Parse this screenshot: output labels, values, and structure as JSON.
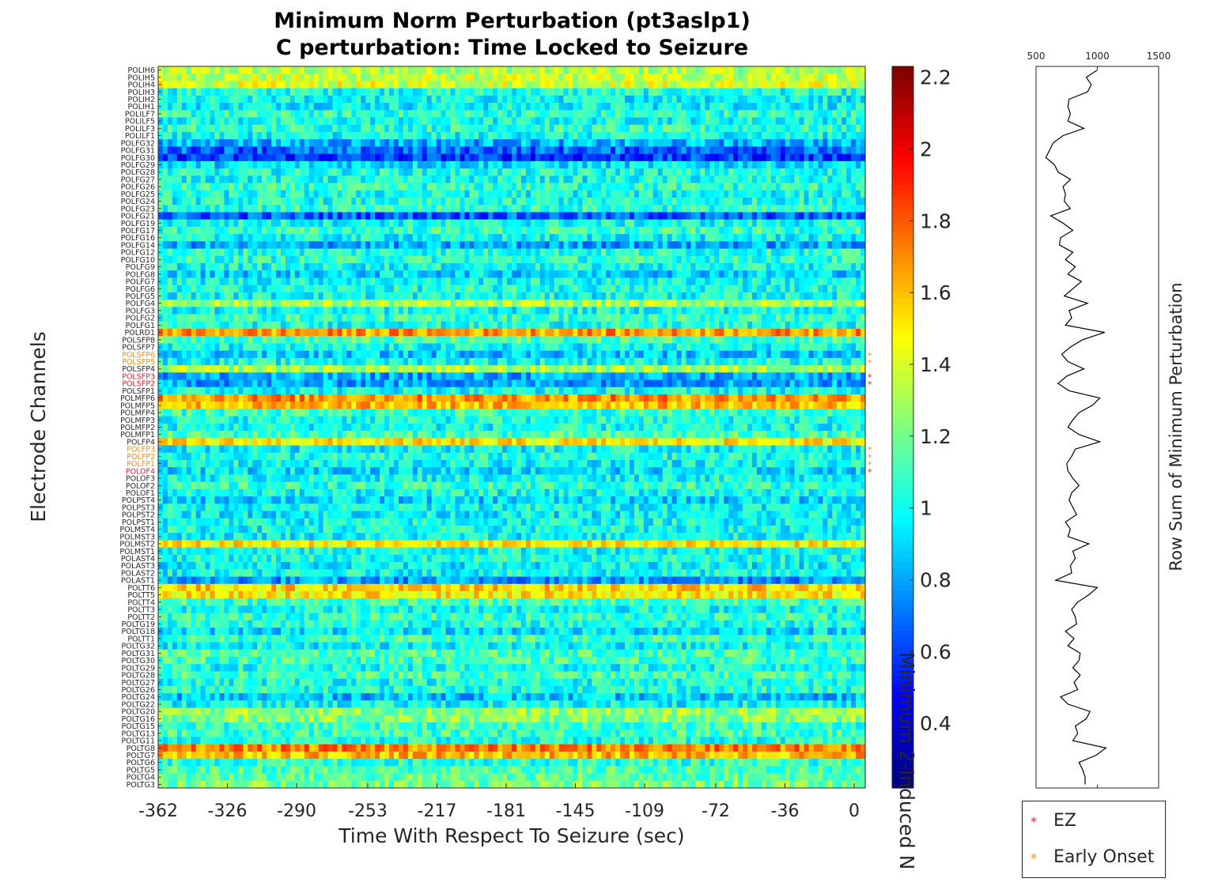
{
  "title_line1": "Minimum Norm Perturbation (pt3aslp1)",
  "title_line2": "C perturbation:  Time Locked to Seizure",
  "colors": {
    "ez": "#e8192c",
    "early_onset": "#ff8c1a",
    "axes": "#262626",
    "line": "#000000"
  },
  "legend": {
    "ez_label": "EZ",
    "early_onset_label": "Early Onset",
    "star_glyph": "*"
  },
  "chart_data": [
    {
      "type": "heatmap",
      "xlabel": "Time With Respect To Seizure (sec)",
      "ylabel": "Electrode Channels",
      "x_ticks": [
        "-362",
        "-326",
        "-290",
        "-253",
        "-217",
        "-181",
        "-145",
        "-109",
        "-72",
        "-36",
        "0"
      ],
      "xlim": [
        -362,
        0
      ],
      "colormap": "jet",
      "colorbar": {
        "label": "Minimum 2-Induced N",
        "clim": [
          0.22,
          2.23
        ],
        "ticks": [
          0.4,
          0.6,
          0.8,
          1,
          1.2,
          1.4,
          1.6,
          1.8,
          2,
          2.2
        ],
        "tick_labels": [
          "0.4",
          "0.6",
          "0.8",
          "1",
          "1.2",
          "1.4",
          "1.6",
          "1.8",
          "2",
          "2.2"
        ]
      },
      "channels": [
        "POLIH6",
        "POLIH5",
        "POLIH4",
        "POLIH3",
        "POLIH2",
        "POLIH1",
        "POLILF7",
        "POLILF5",
        "POLILF3",
        "POLILF1",
        "POLFG32",
        "POLFG31",
        "POLFG30",
        "POLFG29",
        "POLFG28",
        "POLFG27",
        "POLFG26",
        "POLFG25",
        "POLFG24",
        "POLFG23",
        "POLFG21",
        "POLFG19",
        "POLFG17",
        "POLFG16",
        "POLFG14",
        "POLFG12",
        "POLFG10",
        "POLFG9",
        "POLFG8",
        "POLFG7",
        "POLFG6",
        "POLFG5",
        "POLFG4",
        "POLFG3",
        "POLFG2",
        "POLFG1",
        "POLRD1",
        "POLSFP8",
        "POLSFP7",
        "POLSFP6",
        "POLSFP5",
        "POLSFP4",
        "POLSFP3",
        "POLSFP2",
        "POLSFP1",
        "POLMFP6",
        "POLMFP5",
        "POLMFP4",
        "POLMFP3",
        "POLMFP2",
        "POLMFP1",
        "POLFP4",
        "POLFP3",
        "POLFP2",
        "POLFP1",
        "POLOF4",
        "POLOF3",
        "POLOF2",
        "POLOF1",
        "POLPST4",
        "POLPST3",
        "POLPST2",
        "POLPST1",
        "POLMST4",
        "POLMST3",
        "POLMST2",
        "POLMST1",
        "POLAST4",
        "POLAST3",
        "POLAST2",
        "POLAST1",
        "POLTT6",
        "POLTT5",
        "POLTT4",
        "POLTT3",
        "POLTT2",
        "POLTG19",
        "POLTG18",
        "POLTT1",
        "POLTG32",
        "POLTG31",
        "POLTG30",
        "POLTG29",
        "POLTG28",
        "POLTG27",
        "POLTG26",
        "POLTG24",
        "POLTG22",
        "POLTG20",
        "POLTG16",
        "POLTG15",
        "POLTG13",
        "POLTG11",
        "POLTG8",
        "POLTG7",
        "POLTG6",
        "POLTG5",
        "POLTG4",
        "POLTG3"
      ],
      "channel_mean_values": [
        1.32,
        1.36,
        1.4,
        1.03,
        0.98,
        0.98,
        1.06,
        1.0,
        1.06,
        1.0,
        0.82,
        0.68,
        0.58,
        0.92,
        1.02,
        1.0,
        1.06,
        1.0,
        1.02,
        1.06,
        0.66,
        1.0,
        1.08,
        0.98,
        0.8,
        1.04,
        1.06,
        1.0,
        0.9,
        1.0,
        1.02,
        1.0,
        1.3,
        1.0,
        1.08,
        1.02,
        1.68,
        1.12,
        0.98,
        0.88,
        1.0,
        1.3,
        0.8,
        0.8,
        1.0,
        1.7,
        1.6,
        1.08,
        1.02,
        1.0,
        1.1,
        1.5,
        0.98,
        1.02,
        0.98,
        0.92,
        1.0,
        1.06,
        1.0,
        0.9,
        1.0,
        0.96,
        1.0,
        1.0,
        0.98,
        1.5,
        1.0,
        1.02,
        0.96,
        1.0,
        0.78,
        1.55,
        1.5,
        1.1,
        1.0,
        1.08,
        1.04,
        0.92,
        1.08,
        0.98,
        1.12,
        1.1,
        1.0,
        1.1,
        1.02,
        1.04,
        0.86,
        0.98,
        1.26,
        1.24,
        1.08,
        1.1,
        1.02,
        1.72,
        1.62,
        1.06,
        1.12,
        1.16,
        1.2
      ],
      "ez_channels": [
        "POLSFP3",
        "POLSFP2",
        "POLOF4"
      ],
      "early_onset_channels": [
        "POLSFP6",
        "POLSFP5",
        "POLFP3",
        "POLFP2",
        "POLFP1"
      ]
    },
    {
      "type": "line",
      "ylabel": "Row Sum of Minimum Perturbation",
      "x_ticks": [
        "500",
        "1000",
        "1500"
      ],
      "xlim": [
        500,
        1500
      ],
      "values": [
        1000,
        910,
        950,
        920,
        770,
        760,
        780,
        760,
        890,
        720,
        640,
        610,
        580,
        650,
        680,
        780,
        720,
        740,
        730,
        780,
        620,
        720,
        800,
        700,
        690,
        800,
        740,
        820,
        760,
        870,
        800,
        730,
        920,
        770,
        790,
        740,
        1060,
        880,
        780,
        710,
        760,
        890,
        750,
        680,
        770,
        1020,
        960,
        850,
        800,
        760,
        850,
        1020,
        820,
        790,
        750,
        760,
        800,
        850,
        790,
        770,
        800,
        830,
        740,
        780,
        760,
        930,
        800,
        820,
        780,
        790,
        660,
        1000,
        930,
        840,
        790,
        820,
        830,
        740,
        810,
        760,
        860,
        850,
        800,
        860,
        810,
        840,
        700,
        760,
        940,
        910,
        820,
        840,
        800,
        1070,
        990,
        850,
        880,
        900,
        900
      ]
    }
  ]
}
